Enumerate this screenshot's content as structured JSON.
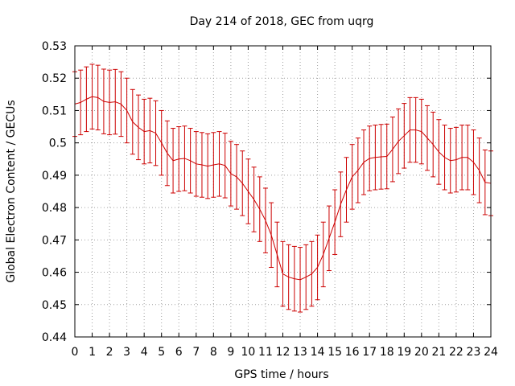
{
  "chart_data": {
    "type": "line",
    "title": "Day 214 of 2018, GEC from uqrg",
    "xlabel": "GPS time / hours",
    "ylabel": "Global Electron Content / GECUs",
    "xlim": [
      0,
      24
    ],
    "ylim": [
      0.44,
      0.53
    ],
    "x_ticks": [
      "0",
      "1",
      "2",
      "3",
      "4",
      "5",
      "6",
      "7",
      "8",
      "9",
      "10",
      "11",
      "12",
      "13",
      "14",
      "15",
      "16",
      "17",
      "18",
      "19",
      "20",
      "21",
      "22",
      "23",
      "24"
    ],
    "y_ticks": [
      "0.44",
      "0.45",
      "0.46",
      "0.47",
      "0.48",
      "0.49",
      "0.5",
      "0.51",
      "0.52",
      "0.53"
    ],
    "grid": true,
    "error_bar_halfwidth": 0.01,
    "series": [
      {
        "color": "#cc0000",
        "x": [
          0,
          0.333,
          0.667,
          1,
          1.333,
          1.667,
          2,
          2.333,
          2.667,
          3,
          3.333,
          3.667,
          4,
          4.333,
          4.667,
          5,
          5.333,
          5.667,
          6,
          6.333,
          6.667,
          7,
          7.333,
          7.667,
          8,
          8.333,
          8.667,
          9,
          9.333,
          9.667,
          10,
          10.333,
          10.667,
          11,
          11.333,
          11.667,
          12,
          12.333,
          12.667,
          13,
          13.333,
          13.667,
          14,
          14.333,
          14.667,
          15,
          15.333,
          15.667,
          16,
          16.333,
          16.667,
          17,
          17.333,
          17.667,
          18,
          18.333,
          18.667,
          19,
          19.333,
          19.667,
          20,
          20.333,
          20.667,
          21,
          21.333,
          21.667,
          22,
          22.333,
          22.667,
          23,
          23.333,
          23.667,
          24
        ],
        "y": [
          0.512,
          0.5125,
          0.5135,
          0.5143,
          0.514,
          0.5128,
          0.5125,
          0.5127,
          0.512,
          0.51,
          0.5065,
          0.5048,
          0.5035,
          0.5038,
          0.503,
          0.5,
          0.4968,
          0.4945,
          0.495,
          0.4952,
          0.4945,
          0.4935,
          0.4932,
          0.4928,
          0.4932,
          0.4935,
          0.493,
          0.4905,
          0.4895,
          0.4875,
          0.485,
          0.4825,
          0.4795,
          0.476,
          0.4715,
          0.4655,
          0.4595,
          0.4585,
          0.458,
          0.4577,
          0.4585,
          0.4595,
          0.4615,
          0.4655,
          0.4705,
          0.4755,
          0.481,
          0.4855,
          0.4895,
          0.4915,
          0.494,
          0.4952,
          0.4955,
          0.4957,
          0.4958,
          0.498,
          0.5005,
          0.5022,
          0.504,
          0.504,
          0.5035,
          0.5015,
          0.4995,
          0.4972,
          0.4955,
          0.4945,
          0.4948,
          0.4955,
          0.4955,
          0.494,
          0.4915,
          0.4878,
          0.4875
        ]
      }
    ]
  }
}
